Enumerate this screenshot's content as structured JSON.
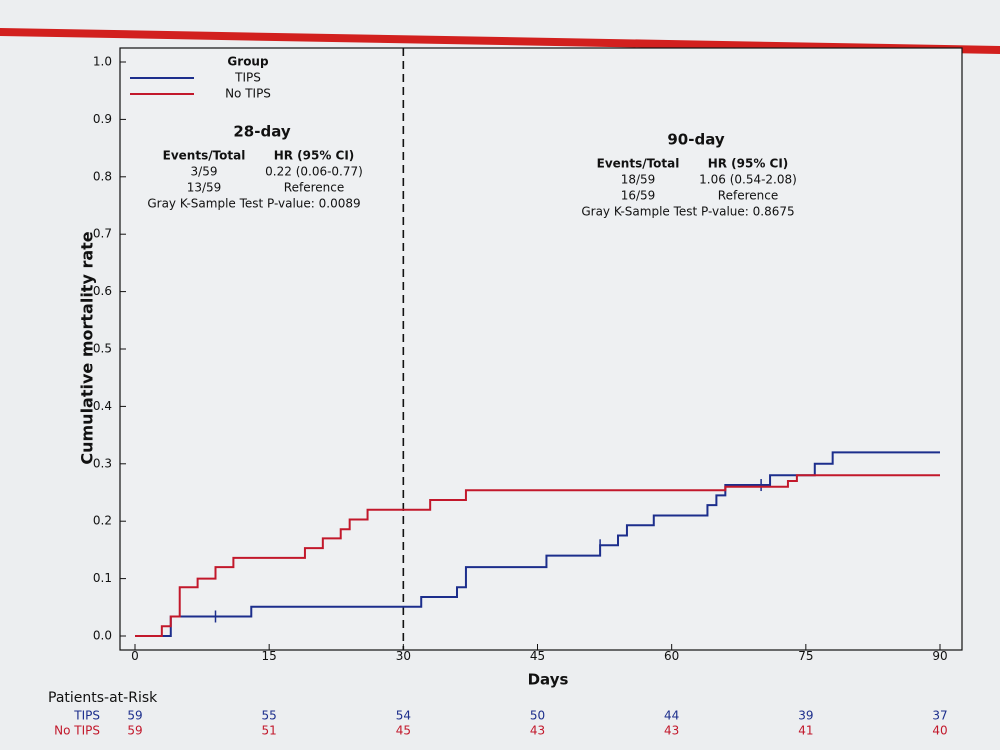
{
  "chart_data": {
    "type": "step",
    "xlabel": "Days",
    "ylabel": "Cumulative mortality rate",
    "xlim": [
      0,
      90
    ],
    "ylim": [
      0,
      1
    ],
    "xticks": [
      0,
      15,
      30,
      45,
      60,
      75,
      90
    ],
    "yticks": [
      {
        "value": 0,
        "label": "0.0"
      },
      0.1,
      0.2,
      0.3,
      0.4,
      0.5,
      0.6,
      0.7,
      0.8,
      0.9,
      {
        "value": 1,
        "label": "1.0"
      }
    ],
    "vline": 30,
    "legend_title": "Group",
    "legend_position": "upper-left",
    "series": [
      {
        "name": "TIPS",
        "color": "#1c2e8c",
        "x": [
          0,
          4,
          13,
          32,
          36,
          37,
          46,
          52,
          54,
          55,
          58,
          64,
          65,
          66,
          71,
          76,
          78,
          90
        ],
        "values": [
          0,
          0.034,
          0.051,
          0.068,
          0.085,
          0.12,
          0.14,
          0.158,
          0.175,
          0.193,
          0.21,
          0.228,
          0.245,
          0.263,
          0.28,
          0.3,
          0.32,
          0.32
        ],
        "censored": {
          "x": [
            9,
            52,
            70
          ],
          "values": [
            0.034,
            0.158,
            0.263
          ]
        }
      },
      {
        "name": "No TIPS",
        "color": "#c2182b",
        "x": [
          0,
          3,
          4,
          5,
          7,
          9,
          11,
          19,
          21,
          23,
          24,
          26,
          33,
          37,
          66,
          73,
          74,
          90
        ],
        "values": [
          0,
          0.017,
          0.034,
          0.085,
          0.1,
          0.12,
          0.136,
          0.153,
          0.17,
          0.186,
          0.203,
          0.22,
          0.237,
          0.254,
          0.26,
          0.27,
          0.28,
          0.28
        ]
      }
    ],
    "annotations": [
      {
        "title": "28-day",
        "headers": [
          "Events/Total",
          "HR (95% CI)"
        ],
        "rows": [
          [
            "3/59",
            "0.22 (0.06-0.77)"
          ],
          [
            "13/59",
            "Reference"
          ]
        ],
        "note": "Gray K-Sample Test P-value: 0.0089"
      },
      {
        "title": "90-day",
        "headers": [
          "Events/Total",
          "HR (95% CI)"
        ],
        "rows": [
          [
            "18/59",
            "1.06 (0.54-2.08)"
          ],
          [
            "16/59",
            "Reference"
          ]
        ],
        "note": "Gray K-Sample Test P-value: 0.8675"
      }
    ],
    "risk_table": {
      "title": "Patients-at-Risk",
      "rows": [
        {
          "name": "TIPS",
          "values": [
            59,
            55,
            54,
            50,
            44,
            39,
            37
          ]
        },
        {
          "name": "No TIPS",
          "values": [
            59,
            51,
            45,
            43,
            43,
            41,
            40
          ]
        }
      ]
    }
  }
}
